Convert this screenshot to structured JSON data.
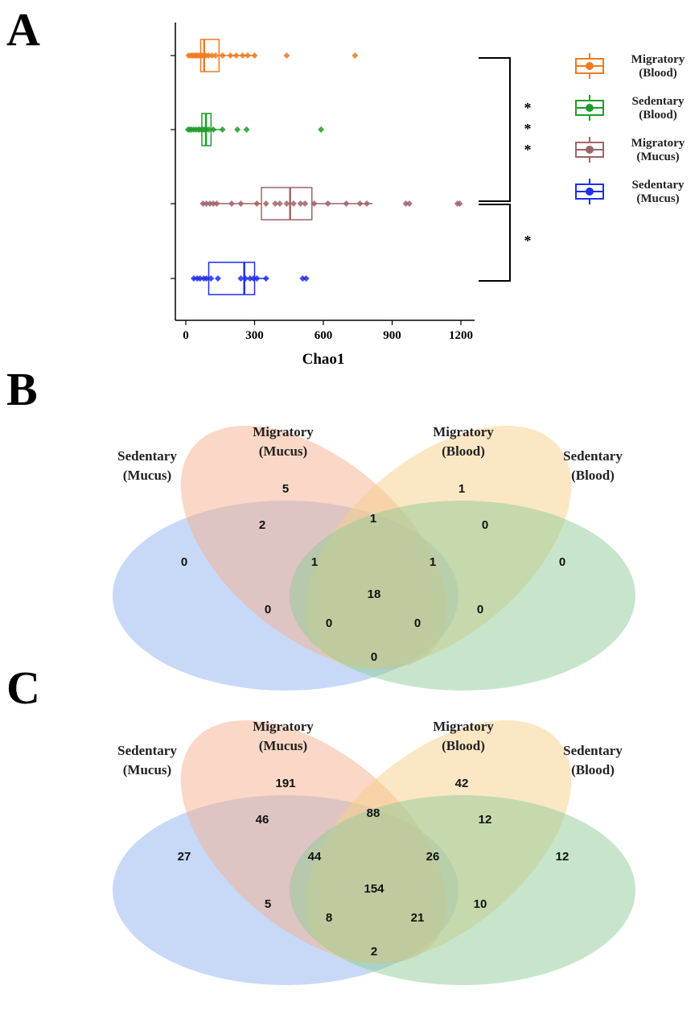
{
  "panels": {
    "a": "A",
    "b": "B",
    "c": "C"
  },
  "chart_data": [
    {
      "type": "boxplot",
      "orientation": "horizontal",
      "xlabel": "Chao1",
      "xlim": [
        -30,
        1240
      ],
      "xticks": [
        0,
        300,
        600,
        900,
        1200
      ],
      "grid": false,
      "legend_placement": "right",
      "series": [
        {
          "name_line1": "Migratory",
          "name_line2": "(Blood)",
          "color": "#F07A1E",
          "q1": 65,
          "median": 80,
          "q3": 145,
          "whisker_low": 10,
          "whisker_high": 300,
          "points": [
            12,
            22,
            30,
            38,
            45,
            52,
            60,
            70,
            78,
            88,
            100,
            115,
            130,
            160,
            195,
            220,
            248,
            270,
            300,
            440,
            738
          ]
        },
        {
          "name_line1": "Sedentary",
          "name_line2": "(Blood)",
          "color": "#1E9C2A",
          "q1": 70,
          "median": 88,
          "q3": 110,
          "whisker_low": 10,
          "whisker_high": 160,
          "points": [
            10,
            18,
            25,
            35,
            45,
            55,
            62,
            72,
            80,
            90,
            100,
            120,
            160,
            225,
            265,
            590
          ]
        },
        {
          "name_line1": "Migratory",
          "name_line2": "(Mucus)",
          "color": "#9E6468",
          "q1": 330,
          "median": 455,
          "q3": 550,
          "whisker_low": 70,
          "whisker_high": 815,
          "points": [
            75,
            90,
            105,
            120,
            135,
            200,
            240,
            310,
            350,
            390,
            410,
            440,
            470,
            500,
            520,
            560,
            620,
            700,
            760,
            790,
            960,
            975,
            1185,
            1195
          ]
        },
        {
          "name_line1": "Sedentary",
          "name_line2": "(Mucus)",
          "color": "#1F2EE8",
          "q1": 100,
          "median": 255,
          "q3": 300,
          "whisker_low": 30,
          "whisker_high": 355,
          "points": [
            35,
            50,
            62,
            78,
            90,
            110,
            140,
            240,
            260,
            280,
            295,
            310,
            350,
            510,
            525
          ]
        }
      ],
      "significance": [
        {
          "label": "* * *"
        },
        {
          "label": "*"
        }
      ]
    },
    {
      "type": "venn",
      "sets": [
        {
          "line1": "Sedentary",
          "line2": "(Mucus)",
          "color": "#8FB4F0"
        },
        {
          "line1": "Migratory",
          "line2": "(Mucus)",
          "color": "#F5B08E"
        },
        {
          "line1": "Migratory",
          "line2": "(Blood)",
          "color": "#F8D08A"
        },
        {
          "line1": "Sedentary",
          "line2": "(Blood)",
          "color": "#8FCB96"
        }
      ],
      "regions": {
        "SM_only": "0",
        "MM_only": "5",
        "MB_only": "1",
        "SB_only": "0",
        "SM_MM": "2",
        "MM_MB": "1",
        "MB_SB": "0",
        "SM_SB": "0",
        "SM_MB": "0",
        "MM_SB": "0",
        "SM_MM_MB": "1",
        "MM_MB_SB": "1",
        "SM_MM_SB": "0",
        "SM_MB_SB": "0",
        "all": "18"
      }
    },
    {
      "type": "venn",
      "sets": [
        {
          "line1": "Sedentary",
          "line2": "(Mucus)",
          "color": "#8FB4F0"
        },
        {
          "line1": "Migratory",
          "line2": "(Mucus)",
          "color": "#F5B08E"
        },
        {
          "line1": "Migratory",
          "line2": "(Blood)",
          "color": "#F8D08A"
        },
        {
          "line1": "Sedentary",
          "line2": "(Blood)",
          "color": "#8FCB96"
        }
      ],
      "regions": {
        "SM_only": "27",
        "MM_only": "191",
        "MB_only": "42",
        "SB_only": "12",
        "SM_MM": "46",
        "MM_MB": "88",
        "MB_SB": "12",
        "SM_SB": "2",
        "SM_MB": "5",
        "MM_SB": "10",
        "SM_MM_MB": "44",
        "MM_MB_SB": "26",
        "SM_MM_SB": "8",
        "SM_MB_SB": "21",
        "all": "154"
      }
    }
  ]
}
